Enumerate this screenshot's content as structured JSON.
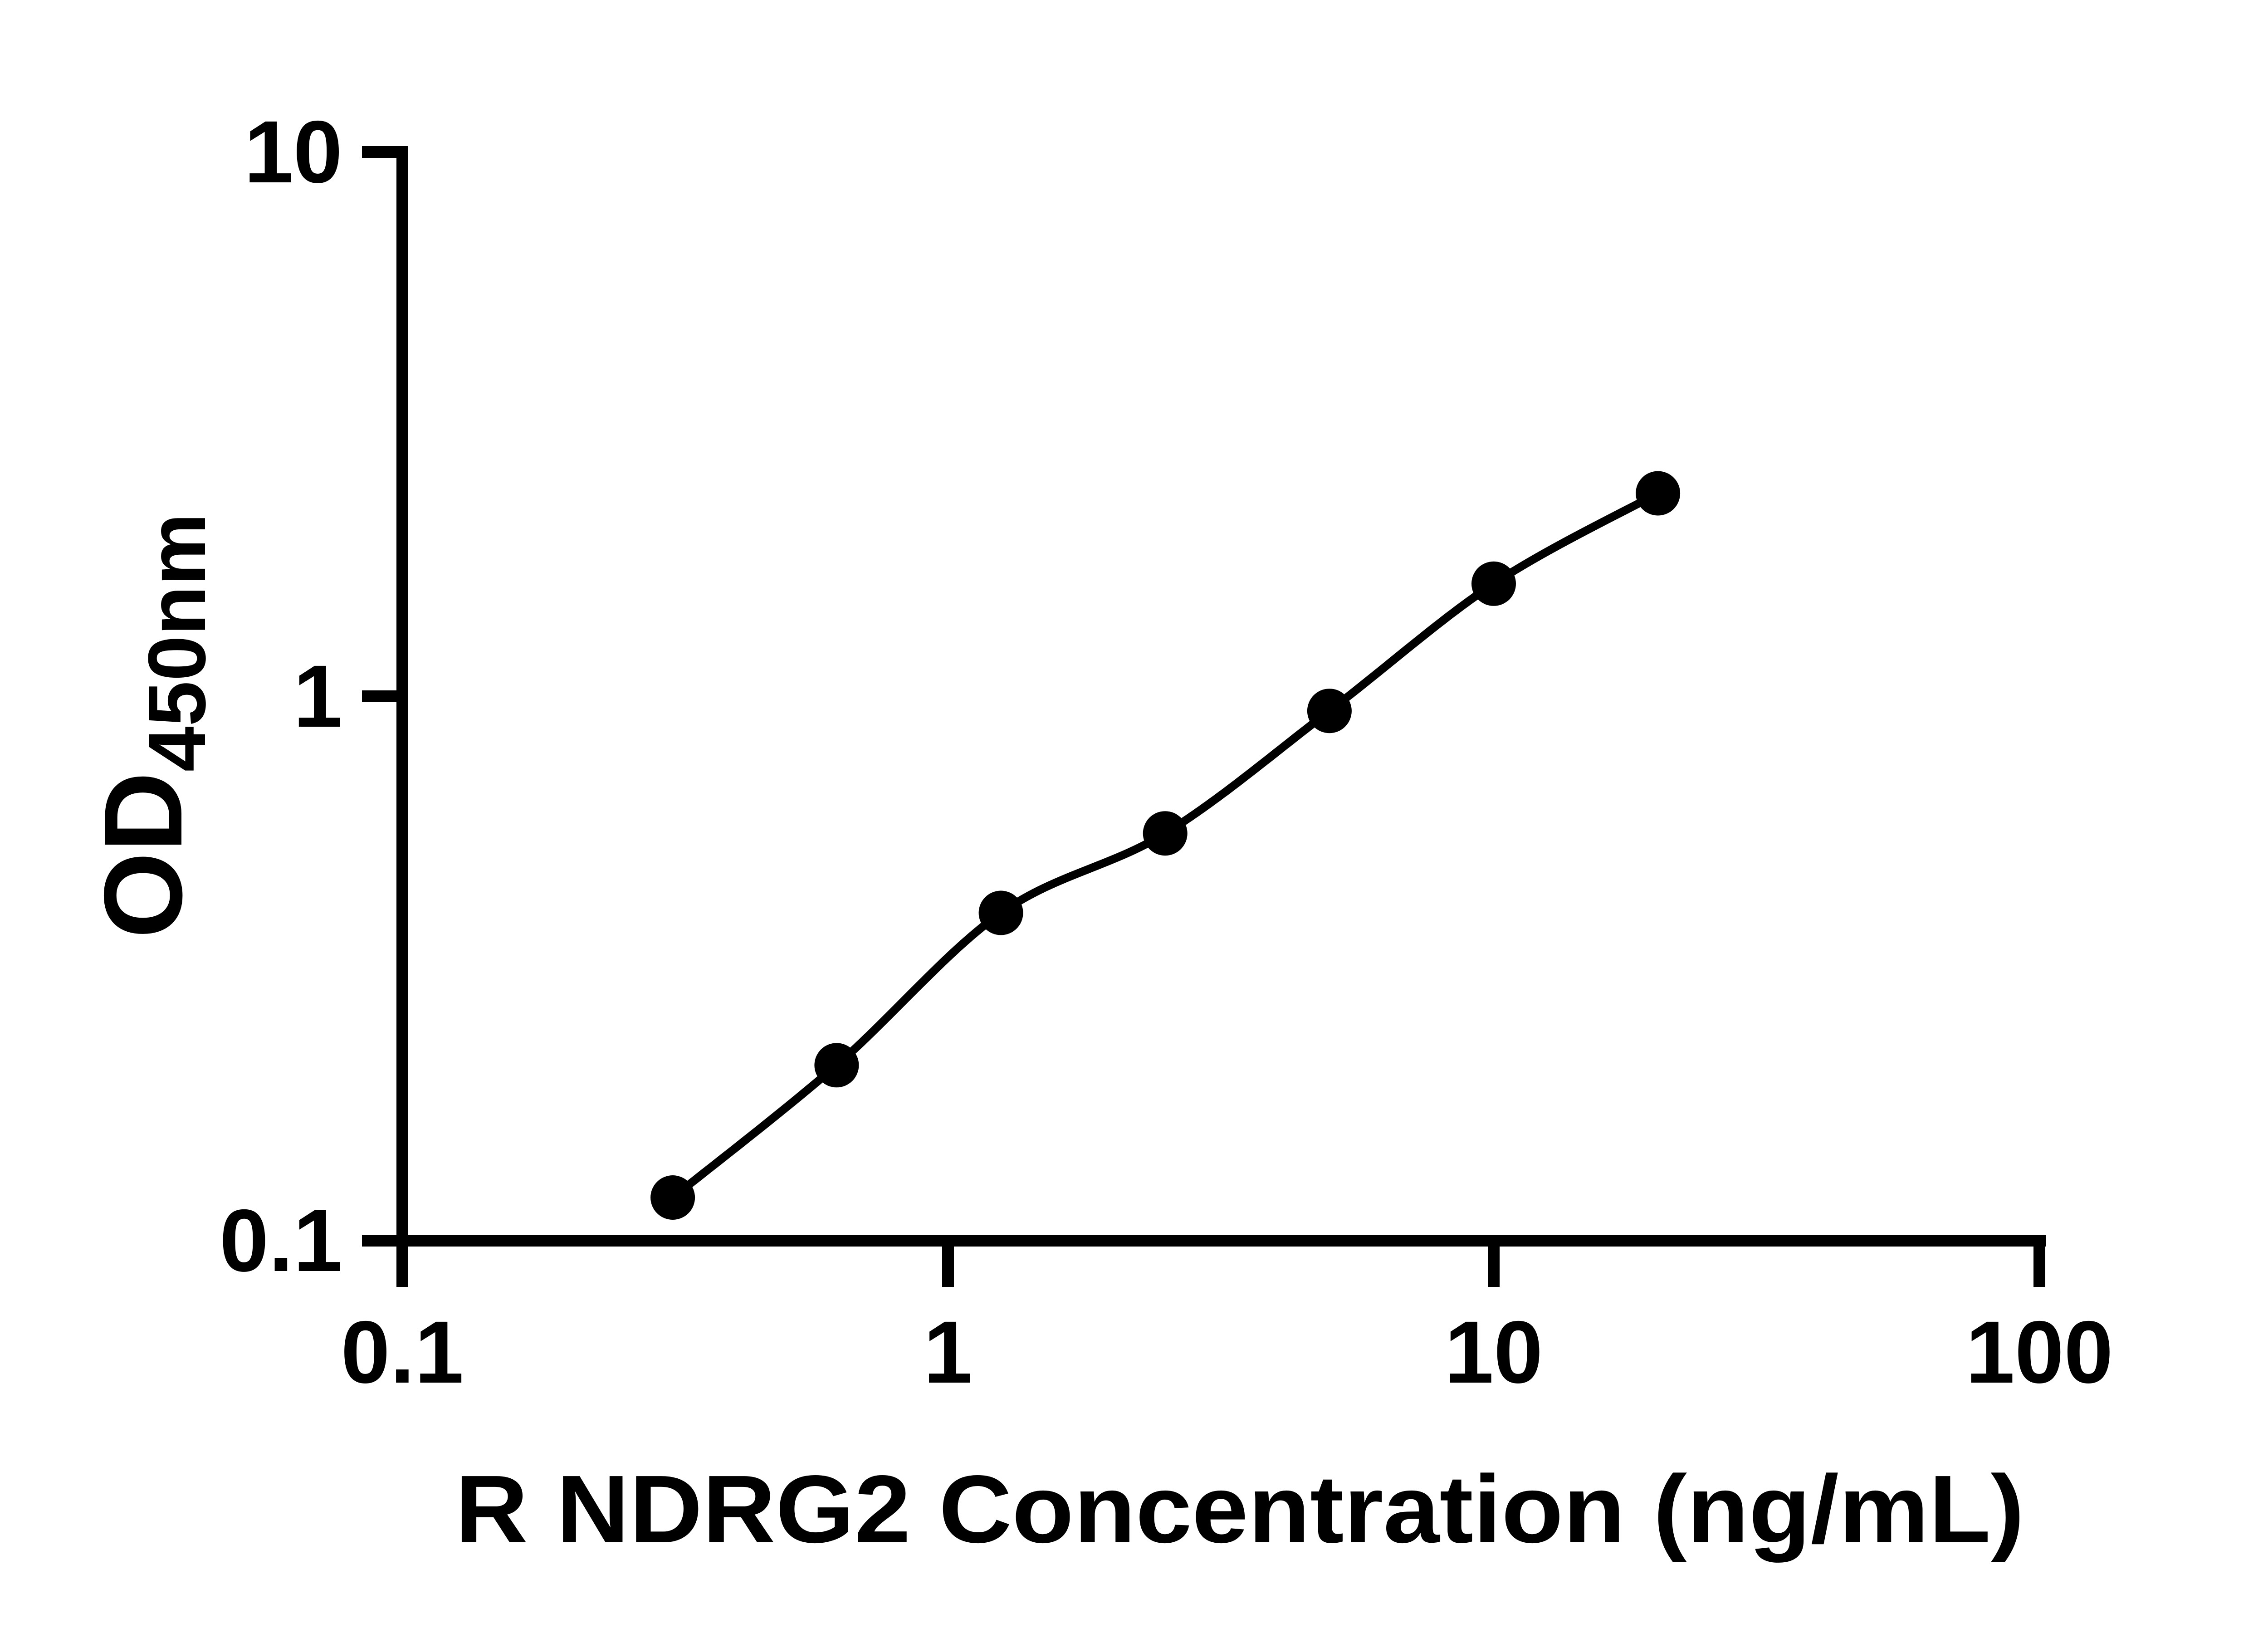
{
  "page": {
    "background_color": "#ffffff",
    "foreground_color": "#000000"
  },
  "chart_data": {
    "type": "scatter",
    "title": "",
    "xlabel": "R NDRG2 Concentration (ng/mL)",
    "ylabel": "OD450nm",
    "ylabel_main": "OD",
    "ylabel_sub": "450nm",
    "xscale": "log",
    "yscale": "log",
    "xlim": [
      0.1,
      100
    ],
    "ylim": [
      0.1,
      10
    ],
    "x_tick_values": [
      0.1,
      1,
      10,
      100
    ],
    "x_tick_labels": [
      "0.1",
      "1",
      "10",
      "100"
    ],
    "y_tick_values": [
      0.1,
      1,
      10
    ],
    "y_tick_labels": [
      "0.1",
      "1",
      "10"
    ],
    "grid": false,
    "legend_position": "none",
    "series": [
      {
        "x": [
          0.313,
          0.625,
          1.25,
          2.5,
          5,
          10,
          20
        ],
        "y": [
          0.12,
          0.21,
          0.4,
          0.56,
          0.94,
          1.61,
          2.36
        ]
      }
    ],
    "marker": {
      "shape": "circle",
      "color": "#000000"
    },
    "line": {
      "color": "#000000",
      "style": "solid"
    }
  }
}
